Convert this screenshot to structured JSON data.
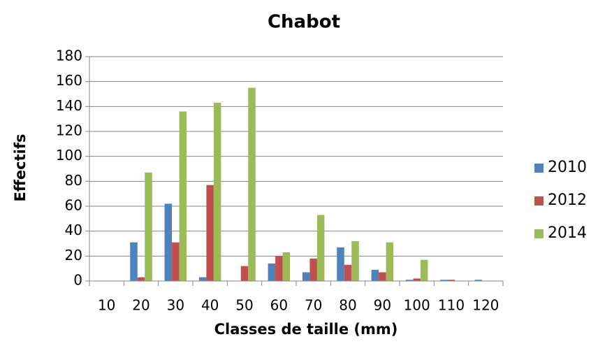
{
  "chart_data": {
    "type": "bar",
    "title": "Chabot",
    "x_label": "Classes de taille (mm)",
    "y_label": "Effectifs",
    "categories": [
      "10",
      "20",
      "30",
      "40",
      "50",
      "60",
      "70",
      "80",
      "90",
      "100",
      "110",
      "120"
    ],
    "series": [
      {
        "name": "2010",
        "color": "#4f81bd",
        "values": [
          0,
          31,
          62,
          3,
          0,
          14,
          7,
          27,
          9,
          1,
          1,
          1
        ]
      },
      {
        "name": "2012",
        "color": "#c0504d",
        "values": [
          0,
          3,
          31,
          77,
          12,
          20,
          18,
          13,
          7,
          2,
          1,
          0
        ]
      },
      {
        "name": "2014",
        "color": "#9bbb59",
        "values": [
          0,
          87,
          136,
          143,
          155,
          23,
          53,
          32,
          31,
          17,
          0,
          0
        ]
      }
    ],
    "ylim": [
      0,
      180
    ],
    "yticks": [
      0,
      20,
      40,
      60,
      80,
      100,
      120,
      140,
      160,
      180
    ],
    "grid": true,
    "legend": "right"
  }
}
